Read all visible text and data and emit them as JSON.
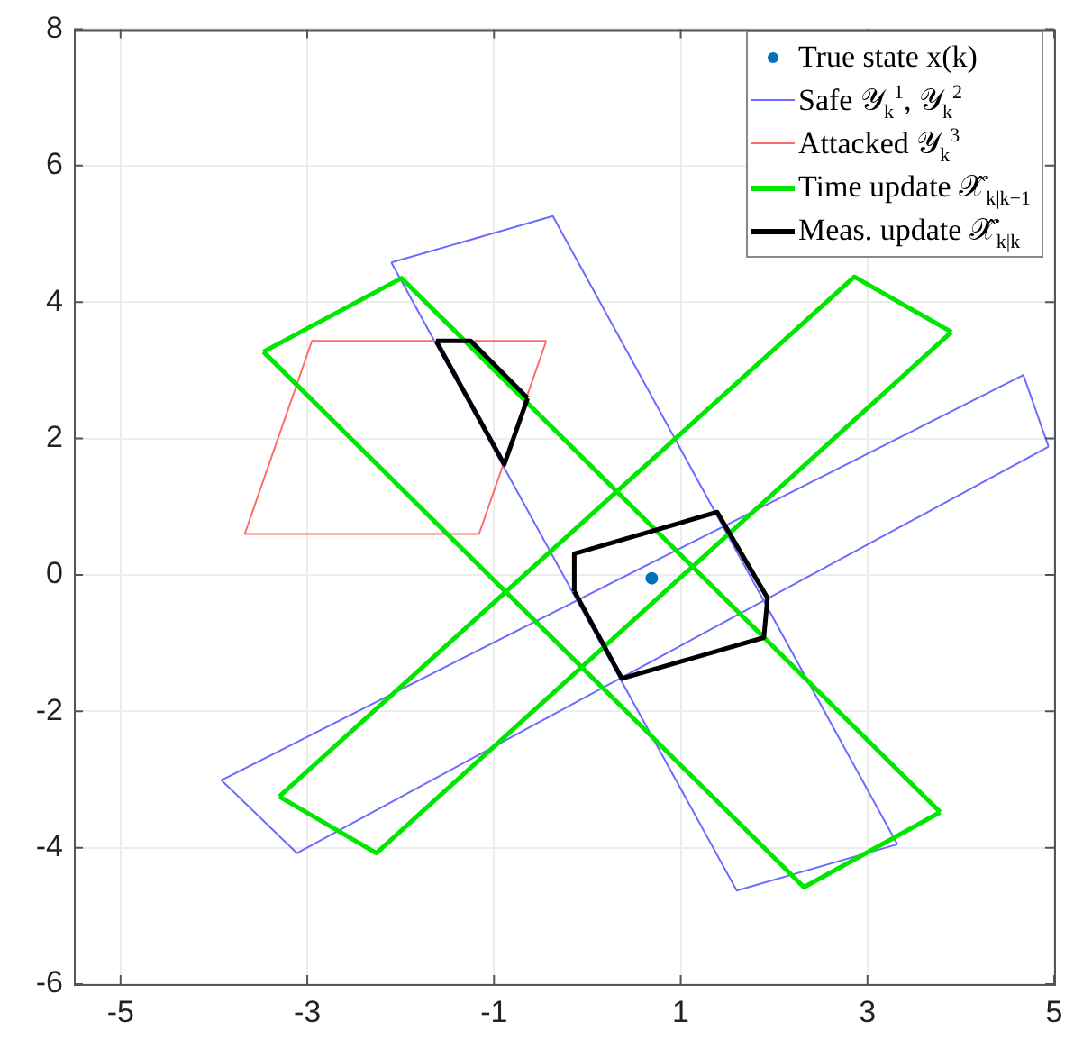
{
  "chart_data": {
    "type": "line",
    "xlim": [
      -5.5,
      5
    ],
    "ylim": [
      -6,
      8
    ],
    "xticks": [
      -5,
      -3,
      -1,
      1,
      3,
      5
    ],
    "yticks": [
      -6,
      -4,
      -2,
      0,
      2,
      4,
      6,
      8
    ],
    "grid": true,
    "legend": "top right",
    "marker": "none",
    "line_style": "solid",
    "series": [
      {
        "name": "True state x(k)",
        "type": "scatter",
        "marker": "circle",
        "color": "#0072bd",
        "x": [
          0.69
        ],
        "values": [
          -0.05
        ]
      },
      {
        "name": "Safe 𝒴$_{k}$$^{1}$, 𝒴$_{k}$$^{2}$",
        "color": "#6b6bff",
        "x": [
          -2.1,
          -0.37,
          3.32
        ],
        "values": [
          4.58,
          5.26,
          -3.95
        ]
      },
      {
        "color": "#6b6bff",
        "x": [
          -2.1,
          1.6,
          3.32
        ],
        "values": [
          4.58,
          -4.63,
          -3.95
        ]
      },
      {
        "color": "#6b6bff",
        "x": [
          -3.92,
          4.67,
          4.94
        ],
        "values": [
          -3.01,
          2.93,
          1.88
        ]
      },
      {
        "color": "#6b6bff",
        "x": [
          -3.92,
          -3.11,
          4.94
        ],
        "values": [
          -3.01,
          -4.08,
          1.88
        ]
      },
      {
        "name": "Attacked 𝒴$_{k}$$^{3}$",
        "color": "#ff6b6b",
        "x": [
          -3.67,
          -2.95,
          -0.44
        ],
        "values": [
          0.6,
          3.43,
          3.43
        ]
      },
      {
        "color": "#ff6b6b",
        "x": [
          -3.67,
          -1.16,
          -0.44
        ],
        "values": [
          0.6,
          0.6,
          3.43
        ]
      },
      {
        "name": "Time update 𝒳̂$_{k|k−1}$",
        "color": "#00e600",
        "x": [
          -3.47,
          -1.99,
          3.78
        ],
        "values": [
          3.27,
          4.35,
          -3.48
        ]
      },
      {
        "color": "#00e600",
        "x": [
          -3.47,
          2.32,
          3.78
        ],
        "values": [
          3.27,
          -4.58,
          -3.48
        ]
      },
      {
        "color": "#00e600",
        "x": [
          -3.3,
          2.86,
          3.9
        ],
        "values": [
          -3.25,
          4.37,
          3.56
        ]
      },
      {
        "color": "#00e600",
        "x": [
          -3.3,
          -2.26,
          3.9
        ],
        "values": [
          -3.25,
          -4.08,
          3.56
        ]
      },
      {
        "name": "Meas. update 𝒳̂$_{k|k}$",
        "color": "#000000",
        "x": [
          -1.62,
          -1.25,
          -0.64
        ],
        "values": [
          3.43,
          3.43,
          2.59
        ]
      },
      {
        "color": "#000000",
        "x": [
          -1.62,
          -0.89,
          -0.64
        ],
        "values": [
          3.43,
          1.62,
          2.59
        ]
      },
      {
        "color": "#000000",
        "x": [
          -0.14,
          -0.14,
          1.39,
          1.93
        ],
        "values": [
          -0.24,
          0.31,
          0.92,
          -0.34
        ]
      },
      {
        "color": "#000000",
        "x": [
          -0.14,
          0.37,
          1.89,
          1.93
        ],
        "values": [
          -0.24,
          -1.52,
          -0.92,
          -0.34
        ]
      }
    ]
  }
}
